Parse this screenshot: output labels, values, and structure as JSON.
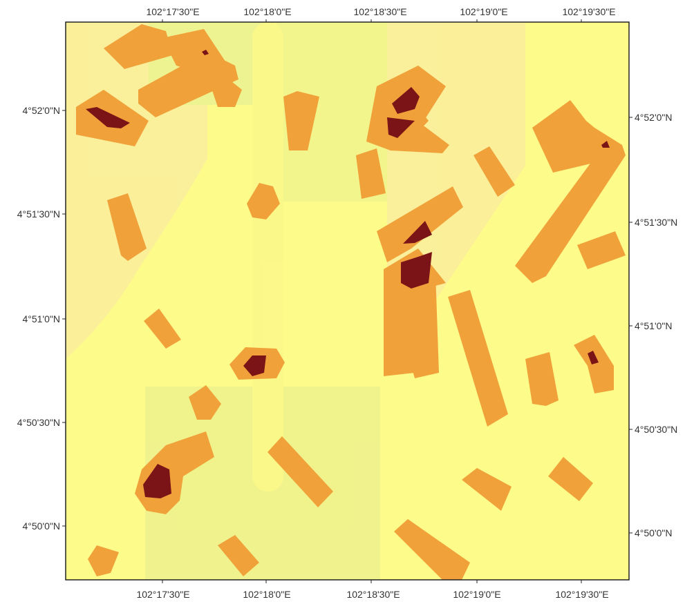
{
  "map": {
    "colors": {
      "background": "#fdfb8a",
      "low_zone": "#f0a13a",
      "high_zone": "#7b1416",
      "watermark_red": "#f2b7b7",
      "watermark_green": "#c8e6a0",
      "frame": "#222222"
    },
    "axes": {
      "longitude_labels_top": [
        "102°17'30\"E",
        "102°18'0\"E",
        "102°18'30\"E",
        "102°19'0\"E",
        "102°19'30\"E"
      ],
      "longitude_labels_bottom": [
        "102°17'30\"E",
        "102°18'0\"E",
        "102°18'30\"E",
        "102°19'0\"E",
        "102°19'30\"E"
      ],
      "latitude_labels_left": [
        "4°52'0\"N",
        "4°51'30\"N",
        "4°51'0\"N",
        "4°50'30\"N",
        "4°50'0\"N"
      ],
      "latitude_labels_right": [
        "4°52'0\"N",
        "4°51'30\"N",
        "4°51'0\"N",
        "4°50'30\"N",
        "4°50'0\"N"
      ]
    },
    "zones": [
      "orange-1",
      "orange-2",
      "orange-3",
      "orange-4",
      "orange-5",
      "orange-6",
      "orange-7",
      "orange-8",
      "orange-9",
      "orange-10",
      "orange-11",
      "orange-12",
      "orange-13",
      "orange-14",
      "orange-15",
      "orange-16",
      "orange-17",
      "orange-18",
      "orange-19",
      "orange-20",
      "orange-21",
      "orange-22",
      "orange-23",
      "orange-24",
      "orange-25",
      "orange-26",
      "orange-27",
      "orange-28",
      "orange-29",
      "orange-30",
      "orange-31",
      "orange-32"
    ],
    "hotspots": 10
  }
}
